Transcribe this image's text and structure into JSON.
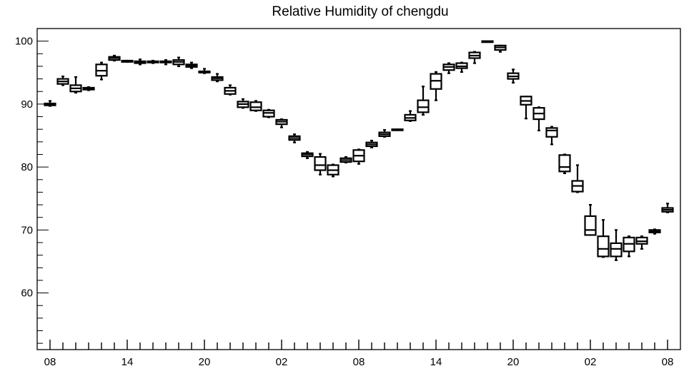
{
  "chart_data": {
    "type": "box",
    "title": "Relative Humidity of chengdu",
    "xlabel": "",
    "ylabel": "",
    "ylim": [
      51,
      102
    ],
    "yticks": [
      60,
      70,
      80,
      90,
      100
    ],
    "xtick_labels": [
      "08",
      "14",
      "20",
      "02",
      "08",
      "14",
      "20",
      "02",
      "08"
    ],
    "xtick_hours": [
      0,
      6,
      12,
      18,
      24,
      30,
      36,
      42,
      48
    ],
    "grid": false,
    "series": [
      {
        "boxes": [
          {
            "hour": 0,
            "min": 89.7,
            "q1": 89.8,
            "median": 90.0,
            "q3": 90.1,
            "max": 90.5
          },
          {
            "hour": 1,
            "min": 93.0,
            "q1": 93.2,
            "median": 93.6,
            "q3": 94.0,
            "max": 94.4
          },
          {
            "hour": 2,
            "min": 91.8,
            "q1": 92.0,
            "median": 92.5,
            "q3": 93.0,
            "max": 94.3
          },
          {
            "hour": 3,
            "min": 92.2,
            "q1": 92.3,
            "median": 92.5,
            "q3": 92.6,
            "max": 92.7
          },
          {
            "hour": 4,
            "min": 93.9,
            "q1": 94.5,
            "median": 95.3,
            "q3": 96.3,
            "max": 96.6
          },
          {
            "hour": 5,
            "min": 96.9,
            "q1": 97.0,
            "median": 97.3,
            "q3": 97.5,
            "max": 97.7
          },
          {
            "hour": 6,
            "min": 96.7,
            "q1": 96.7,
            "median": 96.8,
            "q3": 96.9,
            "max": 96.9
          },
          {
            "hour": 7,
            "min": 96.3,
            "q1": 96.5,
            "median": 96.7,
            "q3": 96.8,
            "max": 97.1
          },
          {
            "hour": 8,
            "min": 96.5,
            "q1": 96.6,
            "median": 96.7,
            "q3": 96.8,
            "max": 96.9
          },
          {
            "hour": 9,
            "min": 96.3,
            "q1": 96.6,
            "median": 96.7,
            "q3": 96.8,
            "max": 97.0
          },
          {
            "hour": 10,
            "min": 96.0,
            "q1": 96.3,
            "median": 96.7,
            "q3": 97.0,
            "max": 97.4
          },
          {
            "hour": 11,
            "min": 95.7,
            "q1": 95.9,
            "median": 96.1,
            "q3": 96.3,
            "max": 96.6
          },
          {
            "hour": 12,
            "min": 94.9,
            "q1": 95.0,
            "median": 95.1,
            "q3": 95.2,
            "max": 95.6
          },
          {
            "hour": 13,
            "min": 93.6,
            "q1": 93.8,
            "median": 94.1,
            "q3": 94.3,
            "max": 94.8
          },
          {
            "hour": 14,
            "min": 91.5,
            "q1": 91.6,
            "median": 92.1,
            "q3": 92.6,
            "max": 93.0
          },
          {
            "hour": 15,
            "min": 89.4,
            "q1": 89.5,
            "median": 90.0,
            "q3": 90.4,
            "max": 90.8
          },
          {
            "hour": 16,
            "min": 88.9,
            "q1": 89.0,
            "median": 89.5,
            "q3": 90.3,
            "max": 90.5
          },
          {
            "hour": 17,
            "min": 87.9,
            "q1": 88.0,
            "median": 88.6,
            "q3": 89.0,
            "max": 89.1
          },
          {
            "hour": 18,
            "min": 86.3,
            "q1": 86.8,
            "median": 87.2,
            "q3": 87.5,
            "max": 87.6
          },
          {
            "hour": 19,
            "min": 83.9,
            "q1": 84.3,
            "median": 84.6,
            "q3": 84.9,
            "max": 85.2
          },
          {
            "hour": 20,
            "min": 81.4,
            "q1": 81.7,
            "median": 82.0,
            "q3": 82.2,
            "max": 82.4
          },
          {
            "hour": 21,
            "min": 78.8,
            "q1": 79.5,
            "median": 80.3,
            "q3": 81.6,
            "max": 82.1
          },
          {
            "hour": 22,
            "min": 78.5,
            "q1": 78.8,
            "median": 79.5,
            "q3": 80.3,
            "max": 80.4
          },
          {
            "hour": 23,
            "min": 80.7,
            "q1": 80.8,
            "median": 81.1,
            "q3": 81.4,
            "max": 81.6
          },
          {
            "hour": 24,
            "min": 80.5,
            "q1": 80.9,
            "median": 81.8,
            "q3": 82.7,
            "max": 82.8
          },
          {
            "hour": 25,
            "min": 83.1,
            "q1": 83.3,
            "median": 83.6,
            "q3": 83.9,
            "max": 84.2
          },
          {
            "hour": 26,
            "min": 84.8,
            "q1": 84.9,
            "median": 85.2,
            "q3": 85.5,
            "max": 85.9
          },
          {
            "hour": 27,
            "min": 85.9,
            "q1": 85.9,
            "median": 85.9,
            "q3": 86.0,
            "max": 86.0
          },
          {
            "hour": 28,
            "min": 87.3,
            "q1": 87.4,
            "median": 87.8,
            "q3": 88.3,
            "max": 88.9
          },
          {
            "hour": 29,
            "min": 88.3,
            "q1": 88.7,
            "median": 89.5,
            "q3": 90.6,
            "max": 92.8
          },
          {
            "hour": 30,
            "min": 90.6,
            "q1": 92.4,
            "median": 93.7,
            "q3": 94.8,
            "max": 95.1
          },
          {
            "hour": 31,
            "min": 94.9,
            "q1": 95.4,
            "median": 95.9,
            "q3": 96.3,
            "max": 96.5
          },
          {
            "hour": 32,
            "min": 95.1,
            "q1": 95.7,
            "median": 96.0,
            "q3": 96.5,
            "max": 96.6
          },
          {
            "hour": 33,
            "min": 96.5,
            "q1": 97.3,
            "median": 97.7,
            "q3": 98.2,
            "max": 98.3
          },
          {
            "hour": 34,
            "min": 99.9,
            "q1": 99.9,
            "median": 100.0,
            "q3": 100.0,
            "max": 100.0
          },
          {
            "hour": 35,
            "min": 98.3,
            "q1": 98.6,
            "median": 99.0,
            "q3": 99.3,
            "max": 99.3
          },
          {
            "hour": 36,
            "min": 93.4,
            "q1": 94.0,
            "median": 94.4,
            "q3": 94.9,
            "max": 95.5
          },
          {
            "hour": 37,
            "min": 87.7,
            "q1": 89.9,
            "median": 90.5,
            "q3": 91.2,
            "max": 91.2
          },
          {
            "hour": 38,
            "min": 85.8,
            "q1": 87.6,
            "median": 88.5,
            "q3": 89.4,
            "max": 89.5
          },
          {
            "hour": 39,
            "min": 83.6,
            "q1": 84.8,
            "median": 85.8,
            "q3": 86.2,
            "max": 86.4
          },
          {
            "hour": 40,
            "min": 79.0,
            "q1": 79.3,
            "median": 80.0,
            "q3": 81.9,
            "max": 82.0
          },
          {
            "hour": 41,
            "min": 76.0,
            "q1": 76.1,
            "median": 77.0,
            "q3": 77.8,
            "max": 80.3
          },
          {
            "hour": 42,
            "min": 69.2,
            "q1": 69.2,
            "median": 70.0,
            "q3": 72.2,
            "max": 74.0
          },
          {
            "hour": 43,
            "min": 65.7,
            "q1": 65.8,
            "median": 67.0,
            "q3": 69.0,
            "max": 71.6
          },
          {
            "hour": 44,
            "min": 65.2,
            "q1": 65.8,
            "median": 67.0,
            "q3": 67.9,
            "max": 70.0
          },
          {
            "hour": 45,
            "min": 65.8,
            "q1": 66.6,
            "median": 67.8,
            "q3": 68.8,
            "max": 69.0
          },
          {
            "hour": 46,
            "min": 67.0,
            "q1": 67.8,
            "median": 68.2,
            "q3": 68.8,
            "max": 69.0
          },
          {
            "hour": 47,
            "min": 69.4,
            "q1": 69.6,
            "median": 69.8,
            "q3": 70.0,
            "max": 70.1
          },
          {
            "hour": 48,
            "min": 72.8,
            "q1": 72.9,
            "median": 73.2,
            "q3": 73.5,
            "max": 74.2
          }
        ]
      }
    ]
  }
}
